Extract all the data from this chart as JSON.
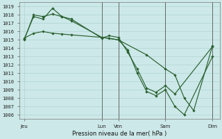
{
  "title": "Pression niveau de la mer( hPa )",
  "ylabel_vals": [
    1006,
    1007,
    1008,
    1009,
    1010,
    1011,
    1012,
    1013,
    1014,
    1015,
    1016,
    1017,
    1018,
    1019
  ],
  "ylim": [
    1005.5,
    1019.5
  ],
  "bg_color": "#cce8e8",
  "grid_color": "#b0d4d4",
  "line_color": "#2a6030",
  "xtick_labels": [
    "Jeu",
    "Lun",
    "Ven",
    "Sam",
    "Dim"
  ],
  "xtick_positions": [
    0,
    33,
    40,
    60,
    80
  ],
  "xlim": [
    -2,
    83
  ],
  "vline_positions": [
    33,
    40,
    60,
    80
  ],
  "line1_x": [
    0,
    4,
    8,
    12,
    16,
    20,
    33,
    36,
    40,
    44,
    48,
    52,
    56,
    60,
    64,
    80
  ],
  "line1_y": [
    1015.0,
    1018.0,
    1017.8,
    1018.1,
    1017.8,
    1017.5,
    1015.2,
    1015.5,
    1015.3,
    1013.5,
    1011.5,
    1009.2,
    1008.7,
    1009.5,
    1008.5,
    1014.2
  ],
  "line2_x": [
    0,
    4,
    8,
    12,
    16,
    20,
    33,
    36,
    40,
    44,
    48,
    52,
    56,
    60,
    64,
    68,
    80
  ],
  "line2_y": [
    1015.1,
    1017.8,
    1017.5,
    1018.8,
    1017.8,
    1017.3,
    1015.3,
    1015.2,
    1015.0,
    1013.8,
    1011.0,
    1008.8,
    1008.3,
    1009.0,
    1007.0,
    1006.0,
    1013.0
  ],
  "line3_x": [
    0,
    4,
    8,
    12,
    16,
    20,
    33,
    40,
    52,
    60,
    64,
    68,
    72,
    80
  ],
  "line3_y": [
    1015.2,
    1015.8,
    1016.0,
    1015.8,
    1015.7,
    1015.6,
    1015.3,
    1015.0,
    1013.2,
    1011.5,
    1010.8,
    1008.0,
    1006.5,
    1014.3
  ]
}
